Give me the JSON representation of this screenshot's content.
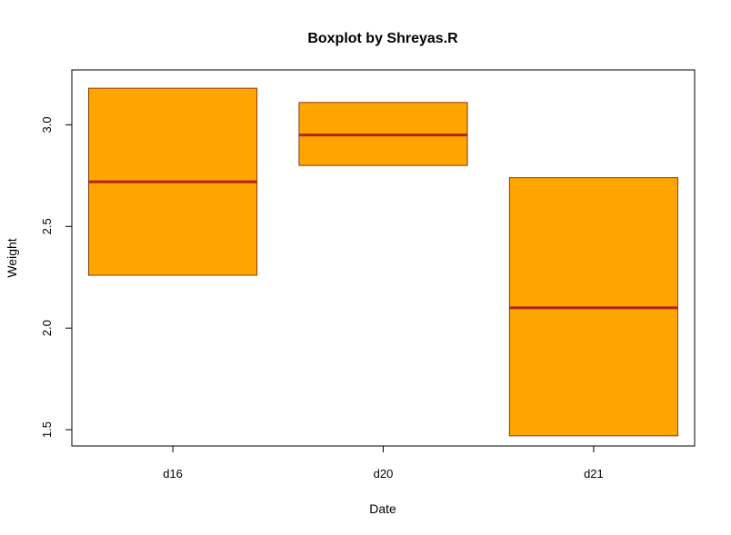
{
  "chart_data": {
    "type": "boxplot",
    "title": "Boxplot by Shreyas.R",
    "xlabel": "Date",
    "ylabel": "Weight",
    "categories": [
      "d16",
      "d20",
      "d21"
    ],
    "boxes": [
      {
        "category": "d16",
        "q1": 2.26,
        "median": 2.72,
        "q3": 3.18
      },
      {
        "category": "d20",
        "q1": 2.8,
        "median": 2.95,
        "q3": 3.11
      },
      {
        "category": "d21",
        "q1": 1.47,
        "median": 2.1,
        "q3": 2.74
      }
    ],
    "ylim": [
      1.42,
      3.27
    ],
    "yticks": [
      1.5,
      2.0,
      2.5,
      3.0
    ],
    "ytick_labels": [
      "1.5",
      "2.0",
      "2.5",
      "3.0"
    ],
    "grid": false,
    "colors": {
      "box_fill": "#FFA500",
      "box_border": "#8B3A0F",
      "median_line": "#B22222"
    }
  }
}
